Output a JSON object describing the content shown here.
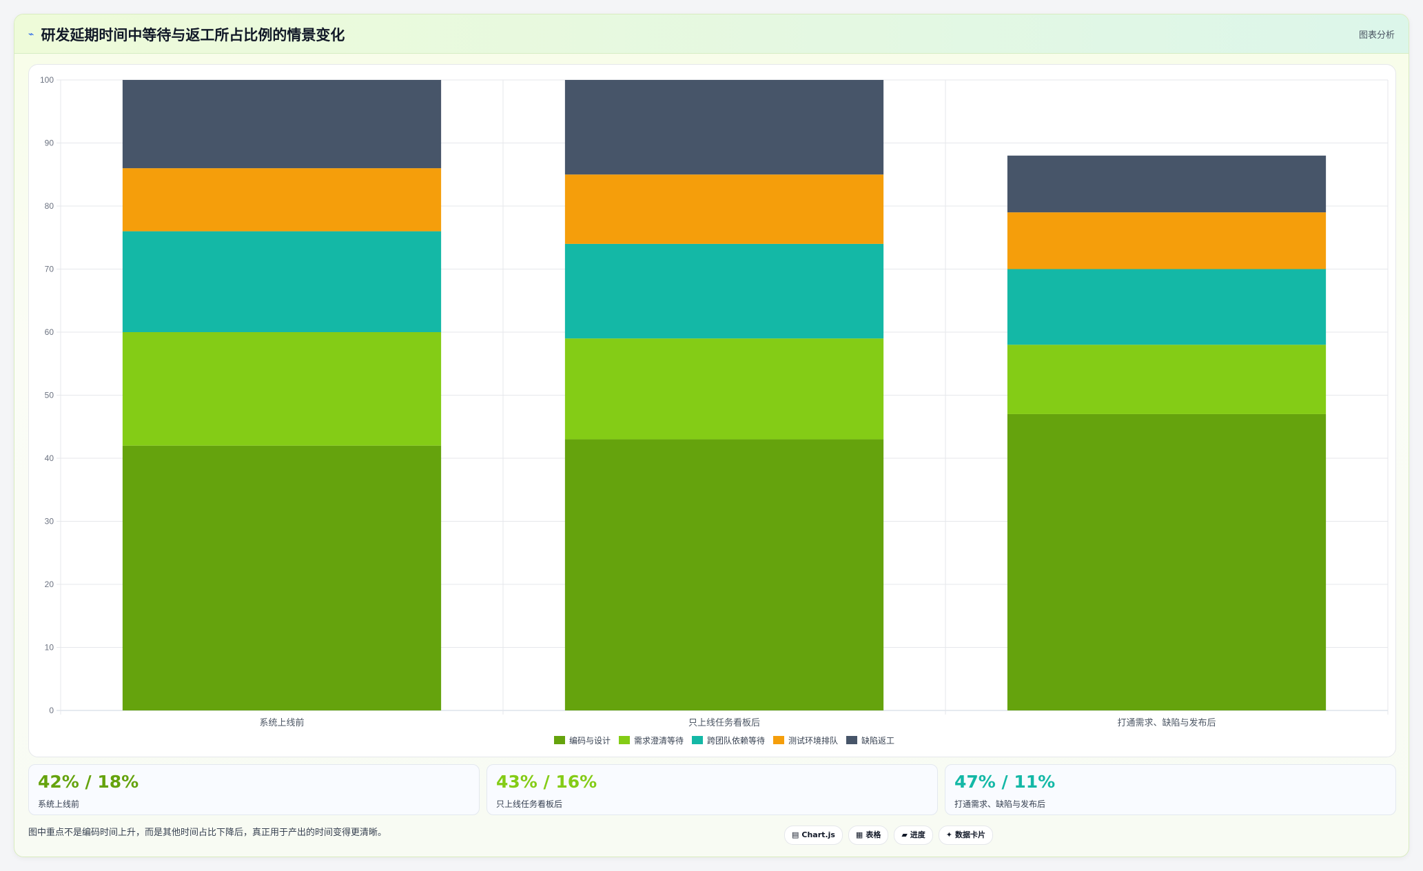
{
  "header": {
    "icon": "chart-icon",
    "title": "研发延期时间中等待与返工所占比例的情景变化",
    "tag": "图表分析"
  },
  "chart_data": {
    "type": "bar",
    "stacked": true,
    "categories": [
      "系统上线前",
      "只上线任务看板后",
      "打通需求、缺陷与发布后"
    ],
    "series": [
      {
        "name": "编码与设计",
        "color": "#65a30d",
        "values": [
          42,
          43,
          47
        ]
      },
      {
        "name": "需求澄清等待",
        "color": "#84cc16",
        "values": [
          18,
          16,
          11
        ]
      },
      {
        "name": "跨团队依赖等待",
        "color": "#14b8a6",
        "values": [
          16,
          15,
          12
        ]
      },
      {
        "name": "测试环境排队",
        "color": "#f59e0b",
        "values": [
          10,
          11,
          9
        ]
      },
      {
        "name": "缺陷返工",
        "color": "#475569",
        "values": [
          14,
          15,
          9
        ]
      }
    ],
    "ylim": [
      0,
      100
    ],
    "yticks": [
      0,
      10,
      20,
      30,
      40,
      50,
      60,
      70,
      80,
      90,
      100
    ],
    "legend": "bottom",
    "grid": true
  },
  "stats": [
    {
      "value": "42% / 18%",
      "label": "系统上线前",
      "color": "#65a30d"
    },
    {
      "value": "43% / 16%",
      "label": "只上线任务看板后",
      "color": "#84cc16"
    },
    {
      "value": "47% / 11%",
      "label": "打通需求、缺陷与发布后",
      "color": "#14b8a6"
    }
  ],
  "footnote": "图中重点不是编码时间上升，而是其他时间占比下降后，真正用于产出的时间变得更清晰。",
  "chips": [
    {
      "icon": "▤",
      "label": "Chart.js"
    },
    {
      "icon": "▦",
      "label": "表格"
    },
    {
      "icon": "▰",
      "label": "进度"
    },
    {
      "icon": "✦",
      "label": "数据卡片"
    }
  ]
}
